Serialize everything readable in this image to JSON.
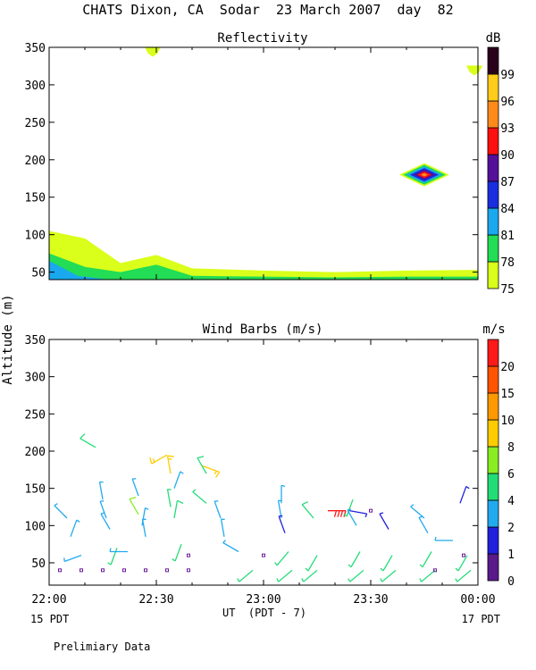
{
  "title": "CHATS Dixon, CA  Sodar  23 March 2007  day  82",
  "ylabel": "Altitude (m)",
  "xlabel": "UT  (PDT - 7)",
  "left_date": "15 PDT",
  "right_date": "17 PDT",
  "footnote": "Prelimiary Data",
  "x_ticks": [
    "22:00",
    "22:30",
    "23:00",
    "23:30",
    "00:00"
  ],
  "chart_data": [
    {
      "type": "heatmap",
      "title": "Reflectivity",
      "colorbar_unit": "dB",
      "x_range": [
        "22:00",
        "00:00"
      ],
      "ylim": [
        40,
        350
      ],
      "y_ticks": [
        50,
        100,
        150,
        200,
        250,
        300,
        350
      ],
      "colorbar_levels": [
        75,
        78,
        81,
        84,
        87,
        90,
        93,
        96,
        99
      ],
      "colorbar_colors": [
        "#d9ff1a",
        "#22dd55",
        "#1aa8ee",
        "#1a2ee0",
        "#55109a",
        "#ff1010",
        "#ff8a1a",
        "#ffcc1a",
        "#2a001a"
      ],
      "contours": [
        {
          "level": 75,
          "top_altitude_m": {
            "x": [
              "22:00",
              "22:10",
              "22:20",
              "22:30",
              "22:40",
              "23:00",
              "23:20",
              "23:40",
              "24:00"
            ],
            "y": [
              105,
              95,
              62,
              73,
              55,
              52,
              50,
              52,
              53
            ]
          }
        },
        {
          "level": 78,
          "top_altitude_m": {
            "x": [
              "22:00",
              "22:10",
              "22:20",
              "22:30",
              "22:40",
              "23:00",
              "23:20",
              "23:40",
              "24:00"
            ],
            "y": [
              75,
              57,
              50,
              60,
              45,
              44,
              43,
              44,
              44
            ]
          }
        },
        {
          "level": 81,
          "top_altitude_m": {
            "x": [
              "22:00",
              "22:08",
              "22:15"
            ],
            "y": [
              65,
              45,
              41
            ]
          }
        }
      ],
      "features": [
        {
          "time": "23:45",
          "altitude_m": 180,
          "peak_dB": 93
        },
        {
          "time": "22:29",
          "altitude_m": 345,
          "peak_dB": 75
        },
        {
          "time": "23:59",
          "altitude_m": 320,
          "peak_dB": 75
        }
      ]
    },
    {
      "type": "scatter",
      "title": "Wind Barbs (m/s)",
      "colorbar_unit": "m/s",
      "x_range": [
        "22:00",
        "00:00"
      ],
      "ylim": [
        20,
        350
      ],
      "y_ticks": [
        50,
        100,
        150,
        200,
        250,
        300,
        350
      ],
      "colorbar_labels": [
        0,
        1,
        2,
        4,
        6,
        8,
        10,
        15,
        20
      ],
      "colorbar_colors": [
        "#5a1a8a",
        "#2020dd",
        "#22aaee",
        "#22dd77",
        "#88ee22",
        "#ffcc00",
        "#ff9900",
        "#ff5500",
        "#ff1a1a"
      ],
      "barbs": [
        {
          "t": 5,
          "alt": 110,
          "speed": 2.5,
          "dir": 315
        },
        {
          "t": 6,
          "alt": 85,
          "speed": 2.5,
          "dir": 20
        },
        {
          "t": 9,
          "alt": 60,
          "speed": 2.2,
          "dir": 250
        },
        {
          "t": 13,
          "alt": 205,
          "speed": 5,
          "dir": 300
        },
        {
          "t": 15,
          "alt": 135,
          "speed": 2.5,
          "dir": 350
        },
        {
          "t": 16,
          "alt": 110,
          "speed": 2.5,
          "dir": 340
        },
        {
          "t": 17,
          "alt": 95,
          "speed": 2.5,
          "dir": 330
        },
        {
          "t": 19,
          "alt": 70,
          "speed": 4,
          "dir": 200
        },
        {
          "t": 22,
          "alt": 65,
          "speed": 2.5,
          "dir": 270
        },
        {
          "t": 25,
          "alt": 140,
          "speed": 2.5,
          "dir": 340
        },
        {
          "t": 25,
          "alt": 115,
          "speed": 6,
          "dir": 330
        },
        {
          "t": 26,
          "alt": 100,
          "speed": 2.5,
          "dir": 10
        },
        {
          "t": 27,
          "alt": 85,
          "speed": 2.5,
          "dir": 350
        },
        {
          "t": 33,
          "alt": 195,
          "speed": 9,
          "dir": 240
        },
        {
          "t": 34,
          "alt": 170,
          "speed": 8,
          "dir": 350
        },
        {
          "t": 35,
          "alt": 150,
          "speed": 2.5,
          "dir": 20
        },
        {
          "t": 34,
          "alt": 125,
          "speed": 4,
          "dir": 350
        },
        {
          "t": 35,
          "alt": 110,
          "speed": 5,
          "dir": 10
        },
        {
          "t": 37,
          "alt": 75,
          "speed": 4,
          "dir": 200
        },
        {
          "t": 43,
          "alt": 180,
          "speed": 9,
          "dir": 110
        },
        {
          "t": 44,
          "alt": 170,
          "speed": 5,
          "dir": 330
        },
        {
          "t": 44,
          "alt": 130,
          "speed": 4,
          "dir": 310
        },
        {
          "t": 48,
          "alt": 110,
          "speed": 2.5,
          "dir": 340
        },
        {
          "t": 49,
          "alt": 85,
          "speed": 2.5,
          "dir": 350
        },
        {
          "t": 53,
          "alt": 65,
          "speed": 2.5,
          "dir": 300
        },
        {
          "t": 57,
          "alt": 40,
          "speed": 4,
          "dir": 230
        },
        {
          "t": 65,
          "alt": 130,
          "speed": 2.5,
          "dir": 0
        },
        {
          "t": 65,
          "alt": 110,
          "speed": 2.5,
          "dir": 350
        },
        {
          "t": 66,
          "alt": 90,
          "speed": 1,
          "dir": 340
        },
        {
          "t": 67,
          "alt": 65,
          "speed": 4,
          "dir": 220
        },
        {
          "t": 68,
          "alt": 40,
          "speed": 4,
          "dir": 230
        },
        {
          "t": 74,
          "alt": 110,
          "speed": 5,
          "dir": 320
        },
        {
          "t": 75,
          "alt": 60,
          "speed": 4,
          "dir": 210
        },
        {
          "t": 75,
          "alt": 40,
          "speed": 4,
          "dir": 230
        },
        {
          "t": 78,
          "alt": 120,
          "speed": 20,
          "dir": 90
        },
        {
          "t": 84,
          "alt": 120,
          "speed": 1,
          "dir": 100
        },
        {
          "t": 85,
          "alt": 135,
          "speed": 4,
          "dir": 200
        },
        {
          "t": 86,
          "alt": 100,
          "speed": 2.5,
          "dir": 330
        },
        {
          "t": 87,
          "alt": 65,
          "speed": 4,
          "dir": 210
        },
        {
          "t": 88,
          "alt": 40,
          "speed": 4,
          "dir": 230
        },
        {
          "t": 95,
          "alt": 95,
          "speed": 1,
          "dir": 330
        },
        {
          "t": 96,
          "alt": 60,
          "speed": 4,
          "dir": 210
        },
        {
          "t": 97,
          "alt": 40,
          "speed": 4,
          "dir": 230
        },
        {
          "t": 105,
          "alt": 110,
          "speed": 2.5,
          "dir": 310
        },
        {
          "t": 106,
          "alt": 90,
          "speed": 2.5,
          "dir": 330
        },
        {
          "t": 107,
          "alt": 65,
          "speed": 4,
          "dir": 210
        },
        {
          "t": 108,
          "alt": 40,
          "speed": 4,
          "dir": 230
        },
        {
          "t": 113,
          "alt": 80,
          "speed": 2.5,
          "dir": 270
        },
        {
          "t": 115,
          "alt": 130,
          "speed": 1,
          "dir": 20
        },
        {
          "t": 117,
          "alt": 60,
          "speed": 4,
          "dir": 210
        },
        {
          "t": 118,
          "alt": 40,
          "speed": 4,
          "dir": 230
        }
      ],
      "calm_points": [
        {
          "t": 3,
          "alt": 40
        },
        {
          "t": 9,
          "alt": 40
        },
        {
          "t": 15,
          "alt": 40
        },
        {
          "t": 21,
          "alt": 40
        },
        {
          "t": 27,
          "alt": 40
        },
        {
          "t": 33,
          "alt": 40
        },
        {
          "t": 39,
          "alt": 60
        },
        {
          "t": 39,
          "alt": 40
        },
        {
          "t": 60,
          "alt": 60
        },
        {
          "t": 90,
          "alt": 120
        },
        {
          "t": 108,
          "alt": 40
        },
        {
          "t": 116,
          "alt": 60
        }
      ]
    }
  ]
}
